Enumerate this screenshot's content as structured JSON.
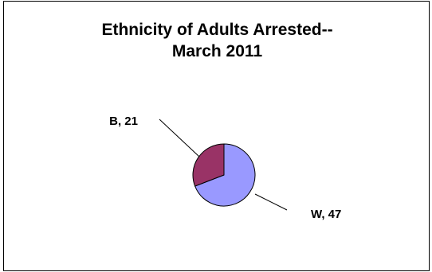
{
  "chart_data": {
    "type": "pie",
    "title_lines": [
      "Ethnicity of Adults Arrested--",
      "March 2011"
    ],
    "slices": [
      {
        "label": "B",
        "value": 21,
        "color": "#993366"
      },
      {
        "label": "W",
        "value": 47,
        "color": "#9999ff"
      }
    ],
    "data_label_separator": ", ",
    "legend": "none"
  }
}
